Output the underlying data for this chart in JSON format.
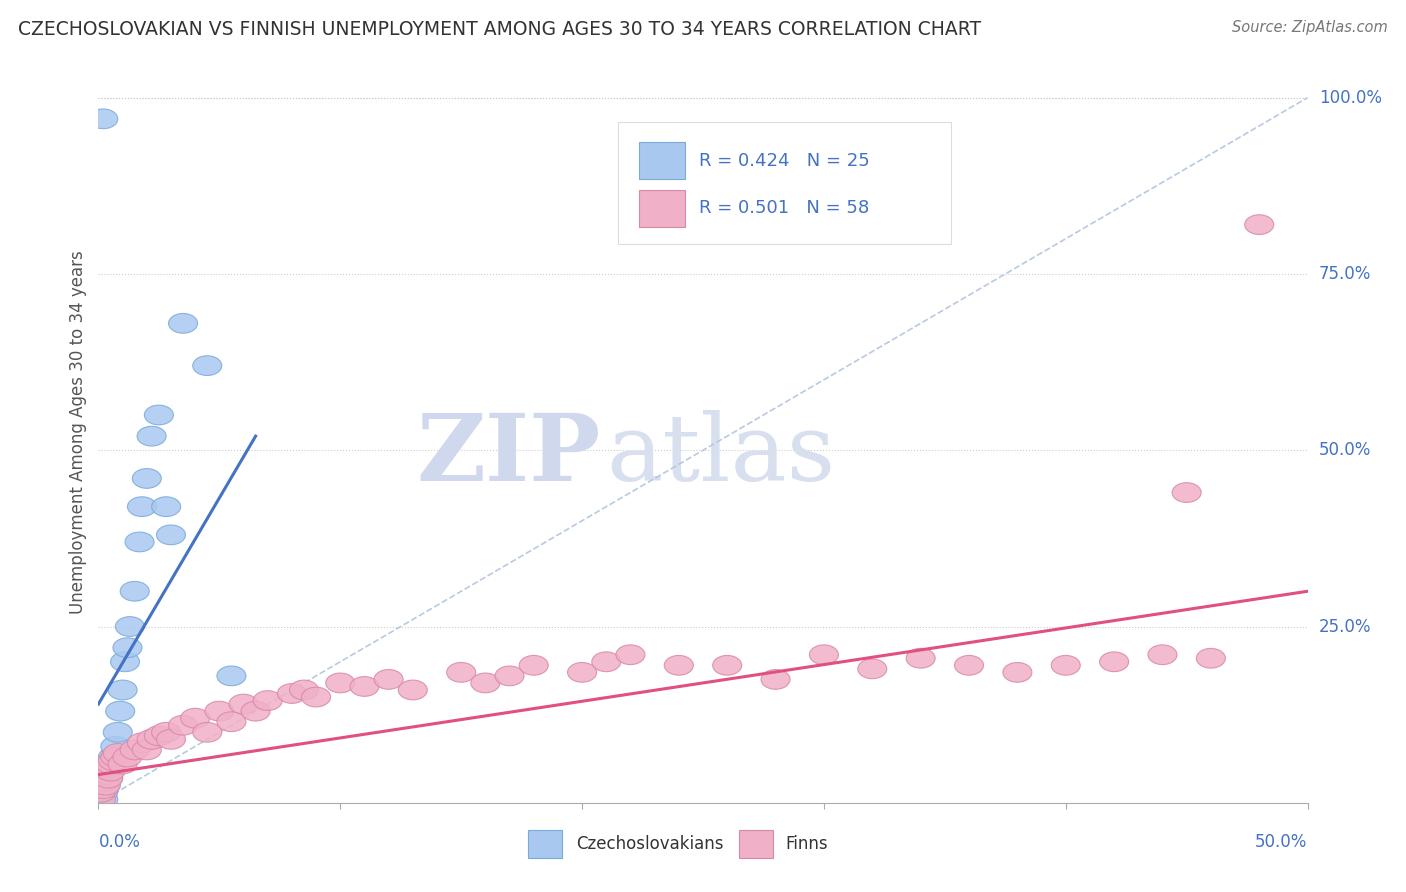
{
  "title": "CZECHOSLOVAKIAN VS FINNISH UNEMPLOYMENT AMONG AGES 30 TO 34 YEARS CORRELATION CHART",
  "source": "Source: ZipAtlas.com",
  "ylabel": "Unemployment Among Ages 30 to 34 years",
  "xlim": [
    0,
    0.5
  ],
  "ylim": [
    0,
    1.05
  ],
  "blue_R": "0.424",
  "blue_N": "25",
  "pink_R": "0.501",
  "pink_N": "58",
  "blue_color": "#a8c8f0",
  "blue_edge_color": "#7aaad8",
  "pink_color": "#f0b0c8",
  "pink_edge_color": "#d888a8",
  "blue_line_color": "#4472c4",
  "pink_line_color": "#e05080",
  "diag_color": "#b0c4e0",
  "grid_color": "#cccccc",
  "axis_color": "#aaaaaa",
  "label_color": "#4472c4",
  "text_color": "#555555",
  "watermark_zip_color": "#d0d8ee",
  "watermark_atlas_color": "#d8e0f0",
  "background_color": "#ffffff",
  "blue_x": [
    0.002,
    0.002,
    0.003,
    0.004,
    0.005,
    0.006,
    0.007,
    0.008,
    0.009,
    0.01,
    0.011,
    0.012,
    0.013,
    0.015,
    0.017,
    0.018,
    0.02,
    0.022,
    0.025,
    0.028,
    0.03,
    0.035,
    0.045,
    0.055,
    0.002
  ],
  "blue_y": [
    0.005,
    0.015,
    0.025,
    0.035,
    0.05,
    0.065,
    0.08,
    0.1,
    0.13,
    0.16,
    0.2,
    0.22,
    0.25,
    0.3,
    0.37,
    0.42,
    0.46,
    0.52,
    0.55,
    0.42,
    0.38,
    0.68,
    0.62,
    0.18,
    0.97
  ],
  "pink_x": [
    0.001,
    0.001,
    0.002,
    0.002,
    0.003,
    0.003,
    0.004,
    0.004,
    0.005,
    0.005,
    0.006,
    0.007,
    0.008,
    0.01,
    0.012,
    0.015,
    0.018,
    0.02,
    0.022,
    0.025,
    0.028,
    0.03,
    0.035,
    0.04,
    0.045,
    0.05,
    0.055,
    0.06,
    0.065,
    0.07,
    0.08,
    0.085,
    0.09,
    0.1,
    0.11,
    0.12,
    0.13,
    0.15,
    0.16,
    0.17,
    0.18,
    0.2,
    0.21,
    0.22,
    0.24,
    0.26,
    0.28,
    0.3,
    0.32,
    0.34,
    0.36,
    0.38,
    0.4,
    0.42,
    0.44,
    0.45,
    0.46,
    0.48
  ],
  "pink_y": [
    0.005,
    0.015,
    0.02,
    0.03,
    0.025,
    0.04,
    0.035,
    0.05,
    0.045,
    0.055,
    0.06,
    0.065,
    0.07,
    0.055,
    0.065,
    0.075,
    0.085,
    0.075,
    0.09,
    0.095,
    0.1,
    0.09,
    0.11,
    0.12,
    0.1,
    0.13,
    0.115,
    0.14,
    0.13,
    0.145,
    0.155,
    0.16,
    0.15,
    0.17,
    0.165,
    0.175,
    0.16,
    0.185,
    0.17,
    0.18,
    0.195,
    0.185,
    0.2,
    0.21,
    0.195,
    0.195,
    0.175,
    0.21,
    0.19,
    0.205,
    0.195,
    0.185,
    0.195,
    0.2,
    0.21,
    0.44,
    0.205,
    0.82
  ],
  "blue_line_x0": 0.0,
  "blue_line_y0": 0.14,
  "blue_line_x1": 0.065,
  "blue_line_y1": 0.52,
  "pink_line_x0": 0.0,
  "pink_line_y0": 0.04,
  "pink_line_x1": 0.5,
  "pink_line_y1": 0.3
}
